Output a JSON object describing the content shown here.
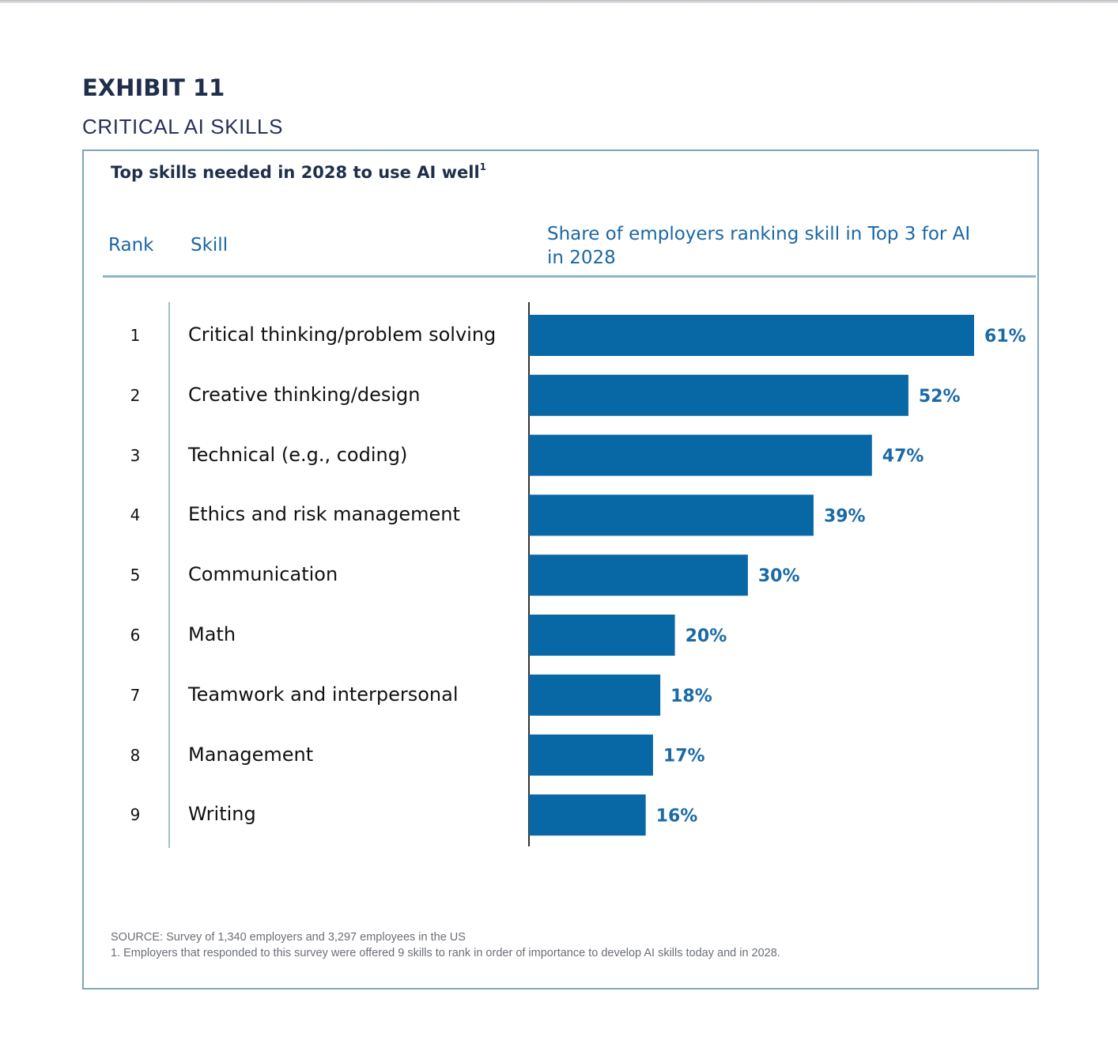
{
  "exhibit_label": "EXHIBIT 11",
  "exhibit_subtitle": "CRITICAL AI SKILLS",
  "chart_title": "Top skills needed in 2028 to use AI well",
  "chart_title_footnote": "1",
  "headers": {
    "rank": "Rank",
    "skill": "Skill",
    "share_line1": "Share of employers ranking skill in Top 3 for AI",
    "share_line2": "in 2028"
  },
  "rows": [
    {
      "rank": "1",
      "skill": "Critical thinking/problem solving",
      "label": "61%"
    },
    {
      "rank": "2",
      "skill": "Creative thinking/design",
      "label": "52%"
    },
    {
      "rank": "3",
      "skill": "Technical (e.g., coding)",
      "label": "47%"
    },
    {
      "rank": "4",
      "skill": "Ethics and risk management",
      "label": "39%"
    },
    {
      "rank": "5",
      "skill": "Communication",
      "label": "30%"
    },
    {
      "rank": "6",
      "skill": "Math",
      "label": "20%"
    },
    {
      "rank": "7",
      "skill": "Teamwork and interpersonal",
      "label": "18%"
    },
    {
      "rank": "8",
      "skill": "Management",
      "label": "17%"
    },
    {
      "rank": "9",
      "skill": "Writing",
      "label": "16%"
    }
  ],
  "colors": {
    "bar": "#0868a6",
    "value_label": "#1a6aa8",
    "axis": "#333333"
  },
  "chart_data": {
    "type": "bar",
    "orientation": "horizontal",
    "title": "Top skills needed in 2028 to use AI well",
    "categories": [
      "Critical thinking/problem solving",
      "Creative thinking/design",
      "Technical (e.g., coding)",
      "Ethics and risk management",
      "Communication",
      "Math",
      "Teamwork and interpersonal",
      "Management",
      "Writing"
    ],
    "values": [
      61,
      52,
      47,
      39,
      30,
      20,
      18,
      17,
      16
    ],
    "unit": "%",
    "xlim": [
      0,
      61
    ],
    "grid": false,
    "legend": "none"
  },
  "source": {
    "line1": "SOURCE: Survey of 1,340 employers and 3,297 employees in the US",
    "line2": "1. Employers that responded to this survey were offered 9 skills to rank in order of importance to develop AI skills today and in 2028."
  }
}
